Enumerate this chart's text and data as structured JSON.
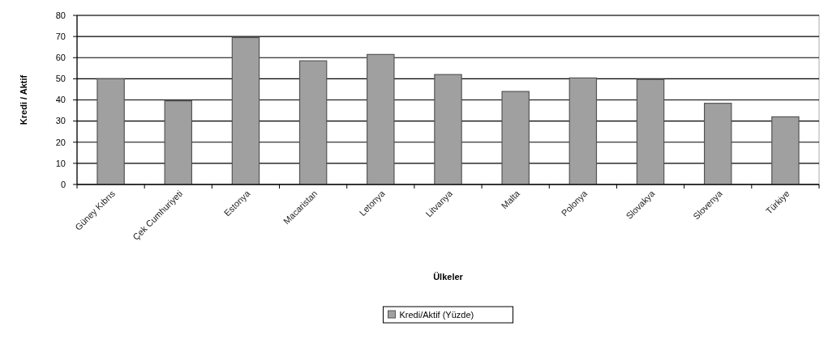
{
  "chart_data": {
    "type": "bar",
    "xlabel": "Ülkeler",
    "ylabel": "Kredi / Aktif",
    "categories": [
      "Güney Kıbrıs",
      "Çek Cumhuriyeti",
      "Estonya",
      "Macaristan",
      "Letonya",
      "Litvanya",
      "Malta",
      "Polonya",
      "Slovakya",
      "Slovenya",
      "Türkiye"
    ],
    "series": [
      {
        "name": "Kredi/Aktif (Yüzde)",
        "color": "#a0a0a0",
        "values": [
          50,
          39.5,
          69.5,
          58.5,
          61.5,
          52,
          44,
          50.4,
          49.7,
          38.4,
          32
        ]
      }
    ],
    "ylim": [
      0,
      80
    ],
    "yticks": [
      0,
      10,
      20,
      30,
      40,
      50,
      60,
      70,
      80
    ],
    "grid": "y",
    "legend": "bottom"
  }
}
